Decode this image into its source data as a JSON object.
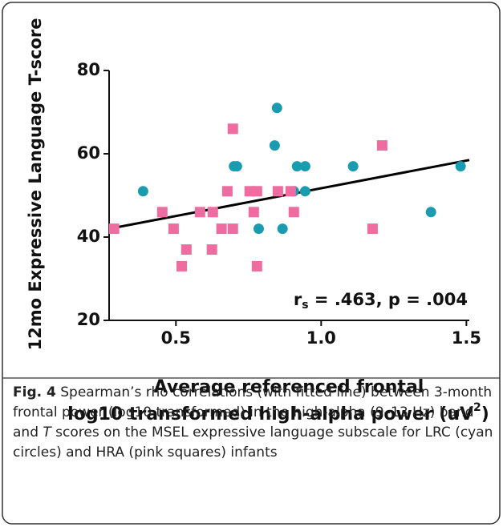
{
  "chart_data": {
    "type": "scatter",
    "y_label": "12mo Expressive Language T-score",
    "x_label_lines": [
      "Average referenced frontal",
      "log10 transformed high-alpha power (uV"
    ],
    "x_label_sup": "2",
    "x_label_end": ")",
    "annotation": {
      "r": "r",
      "sub": "s",
      "rest": " = .463, p = .004"
    },
    "xlim": [
      0.27,
      1.51
    ],
    "xticks": [
      0.5,
      1.0,
      1.5
    ],
    "ylim": [
      20,
      80
    ],
    "yticks": [
      20,
      40,
      60,
      80
    ],
    "series": [
      {
        "name": "LRC",
        "marker": "circle",
        "color": "#1b9bb0",
        "x": [
          0.387,
          0.848,
          0.84,
          0.7,
          0.71,
          0.917,
          0.945,
          1.11,
          1.48,
          0.906,
          0.945,
          0.785,
          0.867,
          1.378
        ],
        "values": [
          51,
          71,
          62,
          57,
          57,
          57,
          57,
          57,
          57,
          51,
          51,
          42,
          42,
          46
        ]
      },
      {
        "name": "HRA",
        "marker": "square",
        "color": "#ee6c9f",
        "x": [
          0.287,
          0.453,
          0.492,
          0.52,
          0.536,
          0.583,
          0.624,
          0.627,
          0.657,
          0.677,
          0.696,
          0.696,
          0.754,
          0.779,
          0.768,
          0.779,
          0.851,
          0.895,
          0.906,
          1.21,
          1.177
        ],
        "values": [
          42,
          46,
          42,
          33,
          37,
          46,
          37,
          46,
          42,
          51,
          66,
          42,
          51,
          51,
          46,
          33,
          51,
          51,
          46,
          62,
          42
        ]
      }
    ],
    "fit": {
      "color": "#000000",
      "x": [
        0.27,
        1.51
      ],
      "values": [
        42,
        58.5
      ]
    }
  },
  "caption": {
    "label": "Fig. 4",
    "text_1": " Spearman’s rho correlations (with fitted line) between 3-month frontal power (log10 transformed) in the high-alpha (9–13 Hz) band and ",
    "italic": "T",
    "text_2": " scores on the MSEL expressive language subscale for LRC (cyan circles) and HRA (pink squares) infants"
  }
}
